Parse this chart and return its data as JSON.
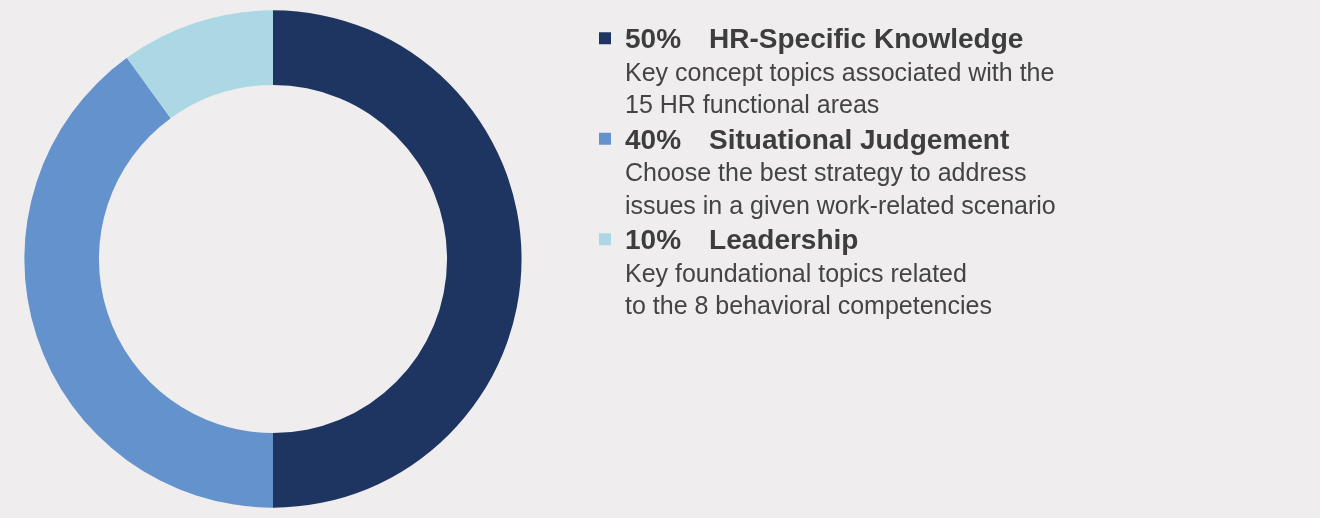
{
  "chart_data": {
    "type": "donut",
    "categories": [
      "HR-Specific Knowledge",
      "Situational Judgement",
      "Leadership"
    ],
    "values": [
      50,
      40,
      10
    ],
    "colors": [
      "#1e3461",
      "#6492cc",
      "#acd8e6"
    ],
    "value_labels": [
      "50%",
      "40%",
      "10%"
    ],
    "annotations": [
      "Key concept topics associated with the\n15 HR functional areas",
      "Choose the best strategy to address\nissues in a given work-related scenario",
      "Key foundational topics related\nto the 8 behavioral competencies"
    ],
    "legend": "right"
  }
}
